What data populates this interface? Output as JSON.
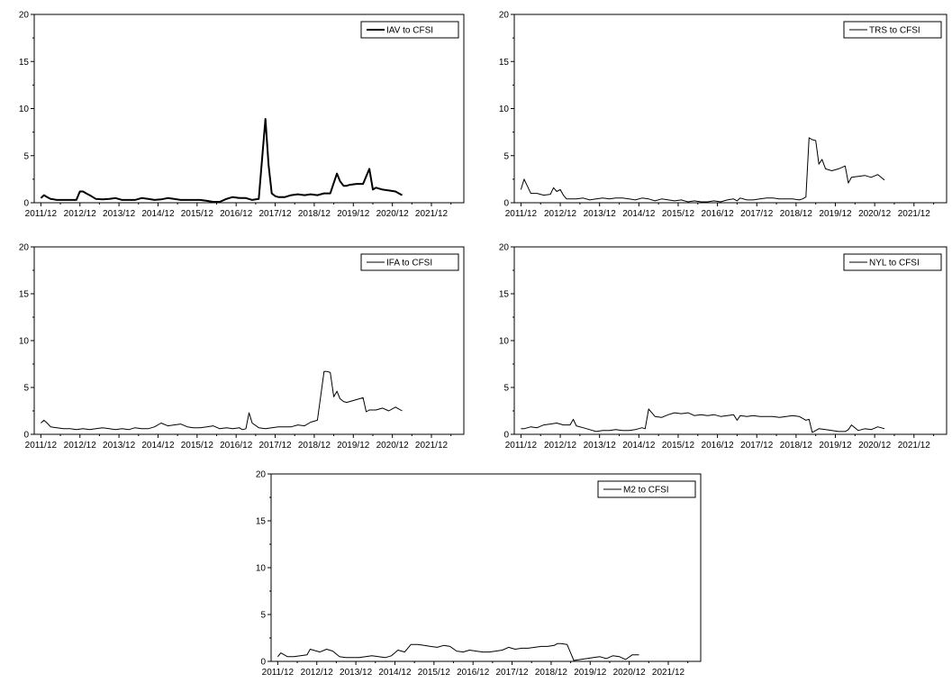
{
  "chart_data": [
    {
      "type": "line",
      "legend": "IAV to CFSI",
      "line_width": 2,
      "xticks": [
        "2011/12",
        "2012/12",
        "2013/12",
        "2014/12",
        "2015/12",
        "2016/12",
        "2017/12",
        "2018/12",
        "2019/12",
        "2020/12",
        "2021/12"
      ],
      "yticks": [
        "0",
        "5",
        "10",
        "15",
        "20"
      ],
      "ylim": [
        0,
        20
      ],
      "x": [
        2011.92,
        2012.0,
        2012.08,
        2012.17,
        2012.25,
        2012.33,
        2012.5,
        2012.67,
        2012.83,
        2012.92,
        2013.0,
        2013.08,
        2013.17,
        2013.25,
        2013.33,
        2013.5,
        2013.67,
        2013.83,
        2014.0,
        2014.17,
        2014.33,
        2014.5,
        2014.67,
        2014.83,
        2015.0,
        2015.17,
        2015.33,
        2015.5,
        2015.67,
        2015.83,
        2016.0,
        2016.17,
        2016.33,
        2016.5,
        2016.67,
        2016.83,
        2017.0,
        2017.17,
        2017.33,
        2017.5,
        2017.67,
        2017.75,
        2017.83,
        2017.92,
        2018.0,
        2018.17,
        2018.33,
        2018.5,
        2018.67,
        2018.83,
        2019.0,
        2019.17,
        2019.33,
        2019.5,
        2019.58,
        2019.67,
        2019.75,
        2019.83,
        2020.0,
        2020.17,
        2020.33,
        2020.42,
        2020.5,
        2020.67,
        2020.83,
        2021.0,
        2021.17
      ],
      "y": [
        0.5,
        0.8,
        0.6,
        0.4,
        0.35,
        0.3,
        0.3,
        0.3,
        0.3,
        1.2,
        1.2,
        1.0,
        0.8,
        0.6,
        0.4,
        0.35,
        0.4,
        0.5,
        0.3,
        0.3,
        0.3,
        0.5,
        0.4,
        0.3,
        0.35,
        0.5,
        0.4,
        0.3,
        0.3,
        0.3,
        0.3,
        0.2,
        0.1,
        0.1,
        0.4,
        0.6,
        0.5,
        0.5,
        0.3,
        0.4,
        8.9,
        4.0,
        1.0,
        0.7,
        0.6,
        0.6,
        0.8,
        0.9,
        0.8,
        0.9,
        0.8,
        1.0,
        1.0,
        3.1,
        2.3,
        1.8,
        1.8,
        1.9,
        2.0,
        2.0,
        3.6,
        1.4,
        1.6,
        1.4,
        1.3,
        1.2,
        0.8
      ]
    },
    {
      "type": "line",
      "legend": "TRS to CFSI",
      "line_width": 1,
      "xticks": [
        "2011/12",
        "2012/12",
        "2013/12",
        "2014/12",
        "2015/12",
        "2016/12",
        "2017/12",
        "2018/12",
        "2019/12",
        "2020/12",
        "2021/12"
      ],
      "yticks": [
        "0",
        "5",
        "10",
        "15",
        "20"
      ],
      "ylim": [
        0,
        20
      ],
      "x": [
        2011.92,
        2012.0,
        2012.08,
        2012.17,
        2012.33,
        2012.5,
        2012.67,
        2012.75,
        2012.83,
        2012.92,
        2013.0,
        2013.08,
        2013.17,
        2013.33,
        2013.5,
        2013.67,
        2013.83,
        2014.0,
        2014.17,
        2014.33,
        2014.5,
        2014.67,
        2014.83,
        2015.0,
        2015.17,
        2015.33,
        2015.5,
        2015.67,
        2015.83,
        2016.0,
        2016.17,
        2016.33,
        2016.5,
        2016.67,
        2016.83,
        2017.0,
        2017.17,
        2017.33,
        2017.42,
        2017.5,
        2017.67,
        2017.83,
        2018.0,
        2018.17,
        2018.33,
        2018.5,
        2018.67,
        2018.83,
        2019.0,
        2019.08,
        2019.17,
        2019.25,
        2019.33,
        2019.42,
        2019.5,
        2019.58,
        2019.67,
        2019.83,
        2020.0,
        2020.17,
        2020.25,
        2020.33,
        2020.5,
        2020.67,
        2020.83,
        2021.0,
        2021.17
      ],
      "y": [
        1.4,
        2.5,
        1.8,
        1.0,
        1.0,
        0.8,
        0.9,
        1.6,
        1.2,
        1.4,
        0.8,
        0.4,
        0.4,
        0.4,
        0.5,
        0.3,
        0.4,
        0.5,
        0.4,
        0.5,
        0.5,
        0.4,
        0.3,
        0.5,
        0.4,
        0.2,
        0.4,
        0.3,
        0.2,
        0.3,
        0.1,
        0.2,
        0.1,
        0.1,
        0.2,
        0.1,
        0.3,
        0.4,
        0.2,
        0.5,
        0.3,
        0.3,
        0.4,
        0.5,
        0.5,
        0.4,
        0.4,
        0.4,
        0.3,
        0.4,
        0.6,
        6.9,
        6.7,
        6.6,
        4.1,
        4.6,
        3.6,
        3.4,
        3.6,
        3.9,
        2.1,
        2.7,
        2.8,
        2.9,
        2.7,
        3.0,
        2.4
      ]
    },
    {
      "type": "line",
      "legend": "IFA to CFSI",
      "line_width": 1,
      "xticks": [
        "2011/12",
        "2012/12",
        "2013/12",
        "2014/12",
        "2015/12",
        "2016/12",
        "2017/12",
        "2018/12",
        "2019/12",
        "2020/12",
        "2021/12"
      ],
      "yticks": [
        "0",
        "5",
        "10",
        "15",
        "20"
      ],
      "ylim": [
        0,
        20
      ],
      "x": [
        2011.92,
        2012.0,
        2012.08,
        2012.17,
        2012.33,
        2012.5,
        2012.67,
        2012.83,
        2013.0,
        2013.17,
        2013.33,
        2013.5,
        2013.67,
        2013.83,
        2014.0,
        2014.17,
        2014.33,
        2014.5,
        2014.67,
        2014.83,
        2015.0,
        2015.17,
        2015.33,
        2015.5,
        2015.67,
        2015.83,
        2016.0,
        2016.17,
        2016.33,
        2016.5,
        2016.67,
        2016.83,
        2017.0,
        2017.08,
        2017.17,
        2017.25,
        2017.33,
        2017.5,
        2017.67,
        2017.83,
        2018.0,
        2018.17,
        2018.33,
        2018.5,
        2018.67,
        2018.83,
        2019.0,
        2019.17,
        2019.25,
        2019.33,
        2019.42,
        2019.5,
        2019.58,
        2019.67,
        2019.75,
        2019.83,
        2020.0,
        2020.17,
        2020.25,
        2020.33,
        2020.5,
        2020.67,
        2020.83,
        2021.0,
        2021.17
      ],
      "y": [
        1.2,
        1.5,
        1.2,
        0.8,
        0.7,
        0.6,
        0.6,
        0.5,
        0.6,
        0.5,
        0.6,
        0.7,
        0.6,
        0.5,
        0.6,
        0.5,
        0.7,
        0.6,
        0.6,
        0.8,
        1.2,
        0.9,
        1.0,
        1.1,
        0.8,
        0.7,
        0.7,
        0.8,
        0.9,
        0.6,
        0.7,
        0.6,
        0.7,
        0.5,
        0.6,
        2.3,
        1.2,
        0.7,
        0.6,
        0.7,
        0.8,
        0.8,
        0.8,
        1.0,
        0.9,
        1.3,
        1.5,
        6.7,
        6.7,
        6.6,
        4.0,
        4.6,
        3.8,
        3.5,
        3.4,
        3.5,
        3.7,
        3.9,
        2.4,
        2.6,
        2.6,
        2.8,
        2.5,
        2.9,
        2.5
      ]
    },
    {
      "type": "line",
      "legend": "NYL to CFSI",
      "line_width": 1,
      "xticks": [
        "2011/12",
        "2012/12",
        "2013/12",
        "2014/12",
        "2015/12",
        "2016/12",
        "2017/12",
        "2018/12",
        "2019/12",
        "2020/12",
        "2021/12"
      ],
      "yticks": [
        "0",
        "5",
        "10",
        "15",
        "20"
      ],
      "ylim": [
        0,
        20
      ],
      "x": [
        2011.92,
        2012.0,
        2012.17,
        2012.33,
        2012.5,
        2012.67,
        2012.83,
        2013.0,
        2013.17,
        2013.25,
        2013.33,
        2013.5,
        2013.67,
        2013.83,
        2014.0,
        2014.17,
        2014.33,
        2014.5,
        2014.67,
        2014.83,
        2015.0,
        2015.08,
        2015.17,
        2015.33,
        2015.5,
        2015.67,
        2015.83,
        2016.0,
        2016.17,
        2016.33,
        2016.5,
        2016.67,
        2016.83,
        2017.0,
        2017.17,
        2017.33,
        2017.42,
        2017.5,
        2017.67,
        2017.83,
        2018.0,
        2018.17,
        2018.33,
        2018.5,
        2018.67,
        2018.83,
        2019.0,
        2019.17,
        2019.25,
        2019.33,
        2019.5,
        2019.67,
        2019.83,
        2020.0,
        2020.17,
        2020.25,
        2020.33,
        2020.5,
        2020.67,
        2020.83,
        2021.0,
        2021.17
      ],
      "y": [
        0.6,
        0.6,
        0.8,
        0.7,
        1.0,
        1.1,
        1.2,
        1.0,
        1.0,
        1.6,
        0.9,
        0.7,
        0.5,
        0.3,
        0.4,
        0.4,
        0.5,
        0.4,
        0.4,
        0.5,
        0.7,
        0.6,
        2.7,
        1.9,
        1.8,
        2.1,
        2.3,
        2.2,
        2.3,
        2.0,
        2.1,
        2.0,
        2.1,
        1.9,
        2.0,
        2.1,
        1.5,
        2.0,
        1.9,
        2.0,
        1.9,
        1.9,
        1.9,
        1.8,
        1.9,
        2.0,
        1.9,
        1.5,
        1.6,
        0.2,
        0.6,
        0.5,
        0.4,
        0.3,
        0.3,
        0.5,
        1.0,
        0.4,
        0.6,
        0.5,
        0.8,
        0.6
      ]
    },
    {
      "type": "line",
      "legend": "M2 to CFSI",
      "line_width": 1,
      "xticks": [
        "2011/12",
        "2012/12",
        "2013/12",
        "2014/12",
        "2015/12",
        "2016/12",
        "2017/12",
        "2018/12",
        "2019/12",
        "2020/12",
        "2021/12"
      ],
      "yticks": [
        "0",
        "5",
        "10",
        "15",
        "20"
      ],
      "ylim": [
        0,
        20
      ],
      "x": [
        2011.92,
        2012.0,
        2012.17,
        2012.33,
        2012.5,
        2012.67,
        2012.75,
        2012.83,
        2013.0,
        2013.17,
        2013.33,
        2013.5,
        2013.67,
        2013.83,
        2014.0,
        2014.17,
        2014.33,
        2014.5,
        2014.67,
        2014.83,
        2015.0,
        2015.17,
        2015.33,
        2015.5,
        2015.67,
        2015.83,
        2016.0,
        2016.17,
        2016.33,
        2016.5,
        2016.67,
        2016.83,
        2017.0,
        2017.17,
        2017.33,
        2017.5,
        2017.67,
        2017.83,
        2018.0,
        2018.17,
        2018.33,
        2018.5,
        2018.67,
        2018.83,
        2019.0,
        2019.08,
        2019.17,
        2019.33,
        2019.5,
        2019.67,
        2019.83,
        2020.0,
        2020.17,
        2020.33,
        2020.5,
        2020.67,
        2020.83,
        2021.0,
        2021.17
      ],
      "y": [
        0.5,
        0.9,
        0.5,
        0.5,
        0.6,
        0.7,
        1.3,
        1.2,
        1.0,
        1.3,
        1.1,
        0.5,
        0.4,
        0.4,
        0.4,
        0.5,
        0.6,
        0.5,
        0.4,
        0.6,
        1.2,
        1.0,
        1.8,
        1.8,
        1.7,
        1.6,
        1.5,
        1.7,
        1.6,
        1.1,
        1.0,
        1.2,
        1.1,
        1.0,
        1.0,
        1.1,
        1.2,
        1.5,
        1.3,
        1.4,
        1.4,
        1.5,
        1.6,
        1.6,
        1.7,
        1.9,
        1.9,
        1.8,
        0.1,
        0.2,
        0.3,
        0.4,
        0.5,
        0.3,
        0.6,
        0.5,
        0.2,
        0.7,
        0.7
      ]
    }
  ]
}
